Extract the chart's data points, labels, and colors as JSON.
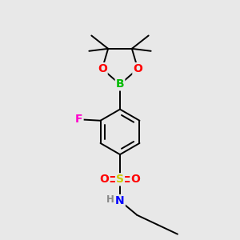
{
  "background_color": "#e8e8e8",
  "atom_colors": {
    "B": "#00bb00",
    "O": "#ff0000",
    "F": "#ff00cc",
    "S": "#cccc00",
    "N": "#0000ff",
    "C": "#000000",
    "H": "#888888"
  },
  "bond_color": "#000000",
  "bond_width": 1.4
}
